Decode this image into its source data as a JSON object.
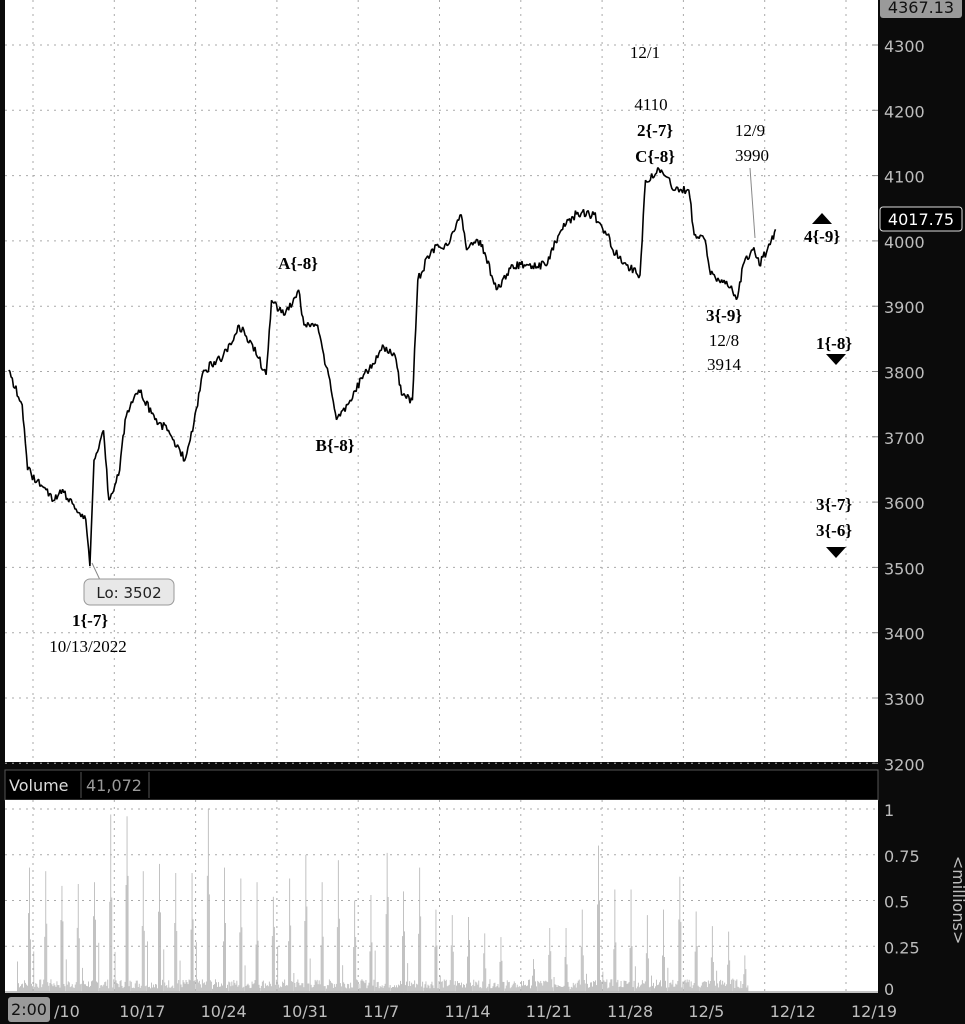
{
  "chart_data": [
    {
      "type": "line",
      "title": "",
      "y_axis": {
        "ticks": [
          4300,
          4200,
          4100,
          4000,
          3900,
          3800,
          3700,
          3600,
          3500,
          3400,
          3300,
          3200
        ],
        "ylim": [
          3200,
          4367.13
        ],
        "position": "right"
      },
      "x_axis": {
        "ticks": [
          "/10",
          "10/17",
          "10/24",
          "10/31",
          "11/7",
          "11/14",
          "11/21",
          "11/28",
          "12/5",
          "12/12",
          "12/19"
        ],
        "cursor_label": "2:00"
      },
      "grid": true,
      "top_price_label": "4367.13",
      "last_price_label": "4017.75",
      "series": [
        {
          "points": [
            [
              "10/6",
              3802
            ],
            [
              "10/7",
              3749
            ],
            [
              "10/7",
              3649
            ],
            [
              "10/10",
              3626
            ],
            [
              "10/11",
              3603
            ],
            [
              "10/11",
              3619
            ],
            [
              "10/12",
              3596
            ],
            [
              "10/13",
              3573
            ],
            [
              "10/13",
              3502
            ],
            [
              "10/13",
              3664
            ],
            [
              "10/14",
              3710
            ],
            [
              "10/14",
              3603
            ],
            [
              "10/17",
              3649
            ],
            [
              "10/17",
              3726
            ],
            [
              "10/18",
              3772
            ],
            [
              "10/19",
              3726
            ],
            [
              "10/20",
              3710
            ],
            [
              "10/20",
              3695
            ],
            [
              "10/21",
              3664
            ],
            [
              "10/21",
              3695
            ],
            [
              "10/24",
              3802
            ],
            [
              "10/25",
              3818
            ],
            [
              "10/26",
              3848
            ],
            [
              "10/26",
              3871
            ],
            [
              "10/27",
              3841
            ],
            [
              "10/28",
              3795
            ],
            [
              "10/28",
              3909
            ],
            [
              "10/31",
              3887
            ],
            [
              "11/1",
              3925
            ],
            [
              "11/1",
              3871
            ],
            [
              "11/2",
              3871
            ],
            [
              "11/3",
              3772
            ],
            [
              "11/3",
              3726
            ],
            [
              "11/4",
              3756
            ],
            [
              "11/7",
              3795
            ],
            [
              "11/7",
              3802
            ],
            [
              "11/8",
              3841
            ],
            [
              "11/9",
              3818
            ],
            [
              "11/9",
              3764
            ],
            [
              "11/10",
              3756
            ],
            [
              "11/10",
              3940
            ],
            [
              "11/11",
              3986
            ],
            [
              "11/14",
              3994
            ],
            [
              "11/14",
              4001
            ],
            [
              "11/15",
              4040
            ],
            [
              "11/15",
              3986
            ],
            [
              "11/16",
              4001
            ],
            [
              "11/17",
              3925
            ],
            [
              "11/18",
              3963
            ],
            [
              "11/21",
              3963
            ],
            [
              "11/22",
              3963
            ],
            [
              "11/23",
              4017
            ],
            [
              "11/24",
              4044
            ],
            [
              "11/25",
              4040
            ],
            [
              "11/28",
              4009
            ],
            [
              "11/28",
              3986
            ],
            [
              "11/29",
              3963
            ],
            [
              "11/30",
              3948
            ],
            [
              "11/30",
              4093
            ],
            [
              "12/1",
              4110
            ],
            [
              "12/2",
              4078
            ],
            [
              "12/5",
              4078
            ],
            [
              "12/5",
              4009
            ],
            [
              "12/6",
              4001
            ],
            [
              "12/6",
              3948
            ],
            [
              "12/7",
              3940
            ],
            [
              "12/8",
              3914
            ],
            [
              "12/8",
              3963
            ],
            [
              "12/9",
              3990
            ],
            [
              "12/9",
              3963
            ],
            [
              "12/12",
              3994
            ],
            [
              "12/12",
              4017.75
            ]
          ]
        }
      ],
      "annotations": [
        {
          "text": "A{-8}"
        },
        {
          "text": "B{-8}"
        },
        {
          "text": "12/1"
        },
        {
          "text": "4110"
        },
        {
          "text": "2{-7}"
        },
        {
          "text": "C{-8}"
        },
        {
          "text": "12/9"
        },
        {
          "text": "3990"
        },
        {
          "text": "3{-9}"
        },
        {
          "text": "12/8"
        },
        {
          "text": "3914"
        },
        {
          "text": "1{-7}"
        },
        {
          "text": "10/13/2022"
        },
        {
          "text": "Lo: 3502"
        },
        {
          "text": "4{-9}"
        },
        {
          "text": "1{-8}"
        },
        {
          "text": "3{-7}"
        },
        {
          "text": "3{-6}"
        }
      ]
    },
    {
      "type": "bar",
      "title": "Volume",
      "header_value": "41,072",
      "ylabel": "<millions>",
      "y_axis": {
        "ticks": [
          "0",
          "0.25",
          "0.5",
          "0.75",
          "1"
        ],
        "ylim": [
          0,
          1
        ]
      },
      "daily_peak_millions": [
        0.68,
        0.66,
        0.58,
        0.59,
        0.6,
        0.97,
        0.96,
        0.66,
        0.7,
        0.65,
        0.65,
        1.0,
        0.68,
        0.62,
        0.6,
        0.52,
        0.62,
        0.75,
        0.6,
        0.72,
        0.5,
        0.53,
        0.76,
        0.55,
        0.68,
        0.45,
        0.42,
        0.41,
        0.32,
        0.3,
        0.04,
        0.18,
        0.35,
        0.35,
        0.45,
        0.8,
        0.56,
        0.56,
        0.42,
        0.45,
        0.63,
        0.44,
        0.36,
        0.33,
        0.2
      ]
    }
  ]
}
